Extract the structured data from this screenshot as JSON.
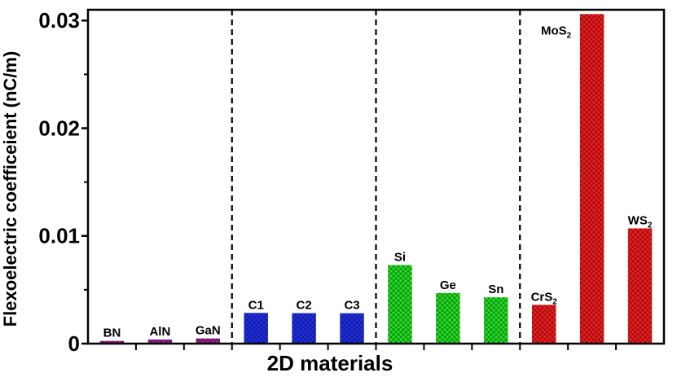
{
  "chart_data": {
    "type": "bar",
    "xlabel": "2D materials",
    "ylabel": "Flexoelectric coefficeient (nC/m)",
    "ylim": [
      0,
      0.031
    ],
    "yticks": [
      {
        "value": 0,
        "label": "0"
      },
      {
        "value": 0.01,
        "label": "0.01"
      },
      {
        "value": 0.02,
        "label": "0.02"
      },
      {
        "value": 0.03,
        "label": "0.03"
      }
    ],
    "grid": false,
    "groups": [
      {
        "color": "#9b1e8f",
        "bars": [
          {
            "label": "BN",
            "sub": "",
            "value": 0.00025
          },
          {
            "label": "AlN",
            "sub": "",
            "value": 0.00038
          },
          {
            "label": "GaN",
            "sub": "",
            "value": 0.00048
          }
        ]
      },
      {
        "color": "#1f2ee6",
        "bars": [
          {
            "label": "C1",
            "sub": "",
            "value": 0.00285
          },
          {
            "label": "C2",
            "sub": "",
            "value": 0.00283
          },
          {
            "label": "C3",
            "sub": "",
            "value": 0.00282
          }
        ]
      },
      {
        "color": "#22dd22",
        "bars": [
          {
            "label": "Si",
            "sub": "",
            "value": 0.0073
          },
          {
            "label": "Ge",
            "sub": "",
            "value": 0.0047
          },
          {
            "label": "Sn",
            "sub": "",
            "value": 0.0043
          }
        ]
      },
      {
        "color": "#ee1c1c",
        "bars": [
          {
            "label": "CrS",
            "sub": "2",
            "value": 0.0036
          },
          {
            "label": "MoS",
            "sub": "2",
            "value": 0.0306
          },
          {
            "label": "WS",
            "sub": "2",
            "value": 0.0107
          }
        ]
      }
    ]
  }
}
